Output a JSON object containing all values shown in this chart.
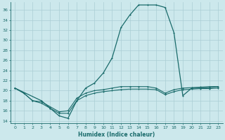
{
  "xlabel": "Humidex (Indice chaleur)",
  "bg_color": "#cce8ec",
  "grid_color": "#aacdd4",
  "line_color": "#1a6b6b",
  "spine_color": "#1a6b6b",
  "x_ticks": [
    0,
    1,
    2,
    3,
    4,
    5,
    6,
    7,
    8,
    9,
    10,
    11,
    12,
    13,
    14,
    15,
    16,
    17,
    18,
    19,
    20,
    21,
    22,
    23
  ],
  "ylim": [
    13.5,
    37.5
  ],
  "xlim": [
    -0.5,
    23.5
  ],
  "yticks": [
    14,
    16,
    18,
    20,
    22,
    24,
    26,
    28,
    30,
    32,
    34,
    36
  ],
  "line1_x": [
    0,
    1,
    2,
    3,
    4,
    5,
    6,
    7,
    8,
    9,
    10,
    11,
    12,
    13,
    14,
    15,
    16,
    17,
    18,
    19,
    20,
    21,
    22,
    23
  ],
  "line1_y": [
    20.5,
    19.5,
    18.0,
    17.5,
    16.5,
    15.5,
    15.5,
    18.0,
    19.0,
    19.5,
    19.8,
    20.0,
    20.2,
    20.3,
    20.3,
    20.3,
    20.2,
    19.2,
    19.8,
    20.2,
    20.3,
    20.4,
    20.4,
    20.5
  ],
  "line2_x": [
    0,
    1,
    2,
    3,
    4,
    5,
    6,
    7,
    8,
    9,
    10,
    11,
    12,
    13,
    14,
    15,
    16,
    17,
    18,
    19,
    20,
    21,
    22,
    23
  ],
  "line2_y": [
    20.5,
    19.5,
    18.0,
    17.8,
    16.8,
    15.8,
    16.0,
    18.5,
    19.5,
    20.0,
    20.2,
    20.5,
    20.8,
    20.8,
    20.8,
    20.8,
    20.5,
    19.5,
    20.2,
    20.5,
    20.6,
    20.7,
    20.8,
    20.8
  ],
  "line3_x": [
    0,
    3,
    4,
    5,
    6,
    7,
    8,
    9,
    10,
    11,
    12,
    13,
    14,
    15,
    16,
    17,
    18,
    19,
    20,
    21,
    22,
    23
  ],
  "line3_y": [
    20.5,
    18.0,
    16.5,
    15.0,
    14.5,
    18.0,
    20.5,
    21.5,
    23.5,
    26.5,
    32.5,
    35.0,
    37.0,
    37.0,
    37.0,
    36.5,
    31.5,
    19.0,
    20.5,
    20.5,
    20.6,
    20.8
  ]
}
